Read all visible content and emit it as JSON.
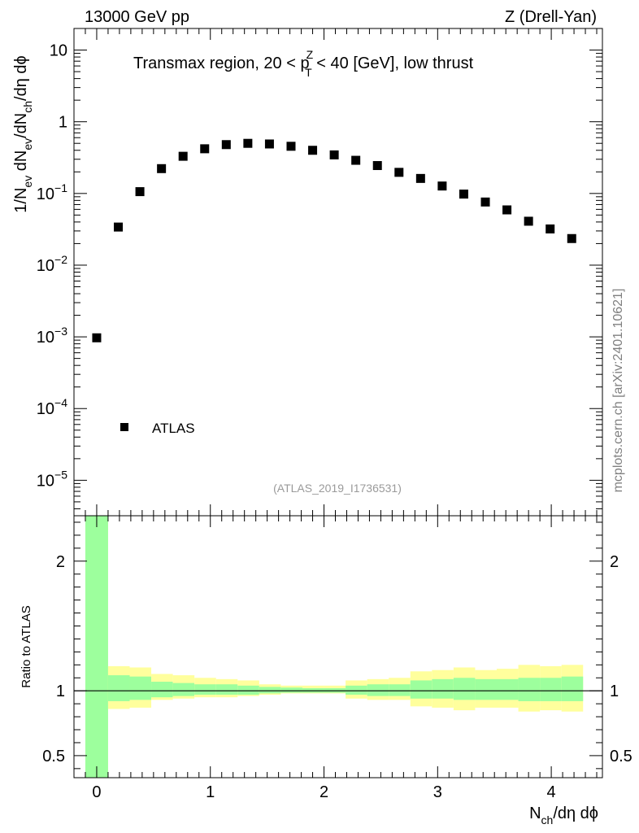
{
  "header": {
    "left": "13000 GeV pp",
    "right": "Z (Drell-Yan)"
  },
  "title": {
    "prefix": "Transmax region, 20 < p",
    "sup": "Z",
    "sub": "T",
    "suffix": " < 40 [GeV], low thrust"
  },
  "side_label": "mcplots.cern.ch [arXiv:2401.10621]",
  "analysis_label": "(ATLAS_2019_I1736531)",
  "legend": {
    "label": "ATLAS"
  },
  "chart_data": {
    "type": "scatter",
    "ylabel_parts": [
      "1/N",
      "ev",
      " dN",
      "ev",
      "/dN",
      "ch",
      "/dη dϕ"
    ],
    "xlabel_parts": [
      "N",
      "ch",
      "/dη dϕ"
    ],
    "ratio_ylabel": "Ratio to ATLAS",
    "xlim": [
      -0.2,
      4.45
    ],
    "ylim": [
      3.2e-06,
      20
    ],
    "ylog": true,
    "x_ticks": [
      {
        "v": 0,
        "label": "0"
      },
      {
        "v": 1,
        "label": "1"
      },
      {
        "v": 2,
        "label": "2"
      },
      {
        "v": 3,
        "label": "3"
      },
      {
        "v": 4,
        "label": "4"
      }
    ],
    "y_ticks": [
      {
        "v": 10,
        "label": "10"
      },
      {
        "v": 1,
        "label": "1"
      },
      {
        "v": 0.1,
        "base": "10",
        "exp": "−1"
      },
      {
        "v": 0.01,
        "base": "10",
        "exp": "−2"
      },
      {
        "v": 0.001,
        "base": "10",
        "exp": "−3"
      },
      {
        "v": 0.0001,
        "base": "10",
        "exp": "−4"
      },
      {
        "v": 1e-05,
        "base": "10",
        "exp": "−5"
      }
    ],
    "series": [
      {
        "name": "ATLAS",
        "x": [
          0.0,
          0.19,
          0.38,
          0.57,
          0.76,
          0.95,
          1.14,
          1.33,
          1.52,
          1.71,
          1.9,
          2.09,
          2.28,
          2.47,
          2.66,
          2.85,
          3.04,
          3.23,
          3.42,
          3.61,
          3.8,
          3.99,
          4.18
        ],
        "y": [
          0.00097,
          0.034,
          0.106,
          0.222,
          0.33,
          0.42,
          0.48,
          0.5,
          0.49,
          0.455,
          0.4,
          0.345,
          0.29,
          0.245,
          0.197,
          0.162,
          0.127,
          0.098,
          0.076,
          0.059,
          0.041,
          0.032,
          0.0235
        ]
      }
    ],
    "ratio": {
      "ylim": [
        0.33,
        2.35
      ],
      "y_ticks": [
        {
          "v": 2,
          "label": "2"
        },
        {
          "v": 1,
          "label": "1"
        },
        {
          "v": 0.5,
          "label": "0.5"
        }
      ],
      "bins": [
        {
          "x0": -0.1,
          "x1": 0.1,
          "yellow": [
            0.33,
            2.35
          ],
          "green": [
            0.33,
            2.35
          ]
        },
        {
          "x0": 0.1,
          "x1": 0.29,
          "yellow": [
            0.86,
            1.19
          ],
          "green": [
            0.92,
            1.12
          ]
        },
        {
          "x0": 0.29,
          "x1": 0.48,
          "yellow": [
            0.87,
            1.18
          ],
          "green": [
            0.93,
            1.11
          ]
        },
        {
          "x0": 0.48,
          "x1": 0.67,
          "yellow": [
            0.93,
            1.13
          ],
          "green": [
            0.95,
            1.07
          ]
        },
        {
          "x0": 0.67,
          "x1": 0.86,
          "yellow": [
            0.94,
            1.12
          ],
          "green": [
            0.96,
            1.06
          ]
        },
        {
          "x0": 0.86,
          "x1": 1.05,
          "yellow": [
            0.95,
            1.1
          ],
          "green": [
            0.97,
            1.05
          ]
        },
        {
          "x0": 1.05,
          "x1": 1.24,
          "yellow": [
            0.95,
            1.09
          ],
          "green": [
            0.97,
            1.05
          ]
        },
        {
          "x0": 1.24,
          "x1": 1.43,
          "yellow": [
            0.96,
            1.08
          ],
          "green": [
            0.97,
            1.04
          ]
        },
        {
          "x0": 1.43,
          "x1": 1.62,
          "yellow": [
            0.97,
            1.05
          ],
          "green": [
            0.98,
            1.03
          ]
        },
        {
          "x0": 1.62,
          "x1": 1.81,
          "yellow": [
            0.98,
            1.04
          ],
          "green": [
            0.985,
            1.025
          ]
        },
        {
          "x0": 1.81,
          "x1": 2.0,
          "yellow": [
            0.98,
            1.04
          ],
          "green": [
            0.985,
            1.02
          ]
        },
        {
          "x0": 2.0,
          "x1": 2.19,
          "yellow": [
            0.98,
            1.04
          ],
          "green": [
            0.985,
            1.02
          ]
        },
        {
          "x0": 2.19,
          "x1": 2.38,
          "yellow": [
            0.94,
            1.08
          ],
          "green": [
            0.97,
            1.04
          ]
        },
        {
          "x0": 2.38,
          "x1": 2.57,
          "yellow": [
            0.93,
            1.09
          ],
          "green": [
            0.96,
            1.05
          ]
        },
        {
          "x0": 2.57,
          "x1": 2.76,
          "yellow": [
            0.93,
            1.1
          ],
          "green": [
            0.96,
            1.05
          ]
        },
        {
          "x0": 2.76,
          "x1": 2.95,
          "yellow": [
            0.88,
            1.15
          ],
          "green": [
            0.94,
            1.08
          ]
        },
        {
          "x0": 2.95,
          "x1": 3.14,
          "yellow": [
            0.87,
            1.16
          ],
          "green": [
            0.94,
            1.09
          ]
        },
        {
          "x0": 3.14,
          "x1": 3.33,
          "yellow": [
            0.85,
            1.18
          ],
          "green": [
            0.93,
            1.1
          ]
        },
        {
          "x0": 3.33,
          "x1": 3.52,
          "yellow": [
            0.87,
            1.16
          ],
          "green": [
            0.93,
            1.09
          ]
        },
        {
          "x0": 3.52,
          "x1": 3.71,
          "yellow": [
            0.87,
            1.17
          ],
          "green": [
            0.93,
            1.09
          ]
        },
        {
          "x0": 3.71,
          "x1": 3.9,
          "yellow": [
            0.84,
            1.2
          ],
          "green": [
            0.92,
            1.1
          ]
        },
        {
          "x0": 3.9,
          "x1": 4.09,
          "yellow": [
            0.85,
            1.19
          ],
          "green": [
            0.92,
            1.1
          ]
        },
        {
          "x0": 4.09,
          "x1": 4.28,
          "yellow": [
            0.84,
            1.2
          ],
          "green": [
            0.92,
            1.11
          ]
        }
      ],
      "colors": {
        "yellow": "#ffff9d",
        "green": "#9dff9d",
        "line": "#000000"
      }
    }
  }
}
